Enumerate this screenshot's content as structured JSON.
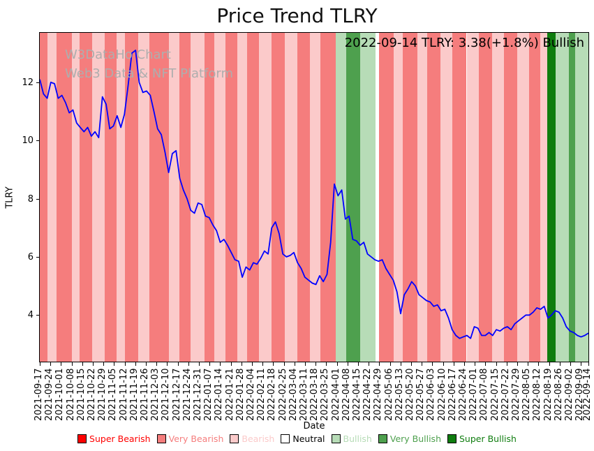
{
  "title": "Price Trend TLRY",
  "watermark": {
    "line1": "W3DataHo Chart",
    "line2": "Web3 Data & NFT Platform"
  },
  "annotation": "2022-09-14 TLRY: 3.38(+1.8%) Bullish",
  "x_axis": {
    "label": "Date"
  },
  "y_axis": {
    "label": "TLRY"
  },
  "chart_data": {
    "type": "line",
    "title": "Price Trend TLRY",
    "xlabel": "Date",
    "ylabel": "TLRY",
    "ylim": [
      2.4,
      13.7
    ],
    "yticks": [
      4,
      6,
      8,
      10,
      12
    ],
    "grid": false,
    "legend_position": "bottom",
    "x_tick_labels": [
      "2021-09-17",
      "2021-09-24",
      "2021-10-01",
      "2021-10-08",
      "2021-10-15",
      "2021-10-22",
      "2021-10-29",
      "2021-11-05",
      "2021-11-12",
      "2021-11-19",
      "2021-11-26",
      "2021-12-03",
      "2021-12-10",
      "2021-12-17",
      "2021-12-24",
      "2021-12-31",
      "2022-01-07",
      "2022-01-14",
      "2022-01-21",
      "2022-01-28",
      "2022-02-04",
      "2022-02-11",
      "2022-02-18",
      "2022-02-25",
      "2022-03-04",
      "2022-03-11",
      "2022-03-18",
      "2022-03-25",
      "2022-04-01",
      "2022-04-08",
      "2022-04-15",
      "2022-04-22",
      "2022-04-29",
      "2022-05-06",
      "2022-05-13",
      "2022-05-20",
      "2022-05-27",
      "2022-06-03",
      "2022-06-10",
      "2022-06-17",
      "2022-06-24",
      "2022-07-01",
      "2022-07-08",
      "2022-07-15",
      "2022-07-22",
      "2022-07-29",
      "2022-08-05",
      "2022-08-12",
      "2022-08-19",
      "2022-08-26",
      "2022-09-02",
      "2022-09-09",
      "2022-09-14"
    ],
    "x_tick_positions": [
      0,
      0.0193,
      0.0387,
      0.058,
      0.0773,
      0.0967,
      0.116,
      0.1354,
      0.1547,
      0.174,
      0.1934,
      0.2127,
      0.232,
      0.2514,
      0.2707,
      0.2901,
      0.3094,
      0.3287,
      0.3481,
      0.3674,
      0.3867,
      0.4061,
      0.4254,
      0.4448,
      0.4641,
      0.4834,
      0.5028,
      0.5221,
      0.5414,
      0.5608,
      0.5801,
      0.5994,
      0.6188,
      0.6381,
      0.6575,
      0.6768,
      0.6961,
      0.7155,
      0.7348,
      0.7541,
      0.7735,
      0.7928,
      0.8122,
      0.8315,
      0.8508,
      0.8702,
      0.8895,
      0.9088,
      0.9282,
      0.9475,
      0.9669,
      0.9862,
      1.0
    ],
    "series": [
      {
        "name": "TLRY",
        "color": "#0000ff",
        "values": [
          12.1,
          11.6,
          11.45,
          12.0,
          11.95,
          11.45,
          11.55,
          11.3,
          10.95,
          11.05,
          10.6,
          10.45,
          10.3,
          10.45,
          10.15,
          10.3,
          10.1,
          11.5,
          11.25,
          10.4,
          10.5,
          10.85,
          10.45,
          10.9,
          11.9,
          13.0,
          13.1,
          12.0,
          11.65,
          11.7,
          11.55,
          11.0,
          10.4,
          10.2,
          9.6,
          8.9,
          9.55,
          9.65,
          8.7,
          8.3,
          8.0,
          7.6,
          7.5,
          7.85,
          7.8,
          7.4,
          7.35,
          7.1,
          6.9,
          6.5,
          6.6,
          6.4,
          6.15,
          5.9,
          5.85,
          5.3,
          5.65,
          5.55,
          5.8,
          5.75,
          5.95,
          6.2,
          6.1,
          7.0,
          7.2,
          6.8,
          6.1,
          6.0,
          6.05,
          6.15,
          5.8,
          5.6,
          5.3,
          5.2,
          5.1,
          5.05,
          5.35,
          5.15,
          5.4,
          6.5,
          8.5,
          8.1,
          8.3,
          7.3,
          7.4,
          6.6,
          6.55,
          6.4,
          6.5,
          6.1,
          6.0,
          5.9,
          5.85,
          5.9,
          5.6,
          5.4,
          5.2,
          4.8,
          4.05,
          4.7,
          4.9,
          5.15,
          5.0,
          4.7,
          4.6,
          4.5,
          4.45,
          4.3,
          4.35,
          4.15,
          4.2,
          3.9,
          3.5,
          3.3,
          3.2,
          3.25,
          3.3,
          3.2,
          3.6,
          3.55,
          3.3,
          3.3,
          3.4,
          3.3,
          3.5,
          3.45,
          3.55,
          3.6,
          3.5,
          3.7,
          3.8,
          3.9,
          4.0,
          4.0,
          4.1,
          4.25,
          4.2,
          4.3,
          3.9,
          4.0,
          4.15,
          4.1,
          3.9,
          3.6,
          3.45,
          3.4,
          3.3,
          3.25,
          3.3,
          3.38
        ]
      }
    ],
    "sentiment_colors": {
      "super_bearish": "#ff0000",
      "very_bearish": "#f57d7d",
      "bearish": "#fbcaca",
      "neutral": "#ffffff",
      "bullish": "#b7dcb7",
      "very_bullish": "#4ea04e",
      "super_bullish": "#0f7d0f"
    },
    "bands": [
      [
        0.0,
        0.014,
        "very_bearish"
      ],
      [
        0.014,
        0.03,
        "bearish"
      ],
      [
        0.03,
        0.058,
        "very_bearish"
      ],
      [
        0.058,
        0.072,
        "bearish"
      ],
      [
        0.072,
        0.096,
        "very_bearish"
      ],
      [
        0.096,
        0.118,
        "bearish"
      ],
      [
        0.118,
        0.14,
        "very_bearish"
      ],
      [
        0.14,
        0.155,
        "bearish"
      ],
      [
        0.155,
        0.18,
        "very_bearish"
      ],
      [
        0.18,
        0.2,
        "bearish"
      ],
      [
        0.2,
        0.235,
        "very_bearish"
      ],
      [
        0.235,
        0.255,
        "bearish"
      ],
      [
        0.255,
        0.275,
        "very_bearish"
      ],
      [
        0.275,
        0.3,
        "bearish"
      ],
      [
        0.3,
        0.318,
        "very_bearish"
      ],
      [
        0.318,
        0.338,
        "bearish"
      ],
      [
        0.338,
        0.36,
        "very_bearish"
      ],
      [
        0.36,
        0.378,
        "bearish"
      ],
      [
        0.378,
        0.4,
        "very_bearish"
      ],
      [
        0.4,
        0.422,
        "bearish"
      ],
      [
        0.422,
        0.446,
        "very_bearish"
      ],
      [
        0.446,
        0.47,
        "bearish"
      ],
      [
        0.47,
        0.492,
        "very_bearish"
      ],
      [
        0.492,
        0.512,
        "bearish"
      ],
      [
        0.512,
        0.54,
        "very_bearish"
      ],
      [
        0.54,
        0.558,
        "bullish"
      ],
      [
        0.558,
        0.584,
        "very_bullish"
      ],
      [
        0.584,
        0.612,
        "bullish"
      ],
      [
        0.612,
        0.618,
        "neutral"
      ],
      [
        0.618,
        0.645,
        "very_bearish"
      ],
      [
        0.645,
        0.662,
        "bearish"
      ],
      [
        0.662,
        0.688,
        "very_bearish"
      ],
      [
        0.688,
        0.706,
        "bearish"
      ],
      [
        0.706,
        0.73,
        "very_bearish"
      ],
      [
        0.73,
        0.752,
        "bearish"
      ],
      [
        0.752,
        0.778,
        "very_bearish"
      ],
      [
        0.778,
        0.8,
        "bearish"
      ],
      [
        0.8,
        0.824,
        "very_bearish"
      ],
      [
        0.824,
        0.846,
        "bearish"
      ],
      [
        0.846,
        0.87,
        "very_bearish"
      ],
      [
        0.87,
        0.892,
        "bearish"
      ],
      [
        0.892,
        0.912,
        "very_bearish"
      ],
      [
        0.912,
        0.925,
        "bearish"
      ],
      [
        0.925,
        0.94,
        "super_bullish"
      ],
      [
        0.94,
        0.964,
        "bullish"
      ],
      [
        0.964,
        0.976,
        "very_bullish"
      ],
      [
        0.976,
        1.0,
        "bullish"
      ]
    ],
    "legend": [
      {
        "label": "Super Bearish",
        "key": "super_bearish"
      },
      {
        "label": "Very Bearish",
        "key": "very_bearish"
      },
      {
        "label": "Bearish",
        "key": "bearish"
      },
      {
        "label": "Neutral",
        "key": "neutral"
      },
      {
        "label": "Bullish",
        "key": "bullish"
      },
      {
        "label": "Very Bullish",
        "key": "very_bullish"
      },
      {
        "label": "Super Bullish",
        "key": "super_bullish"
      }
    ]
  }
}
